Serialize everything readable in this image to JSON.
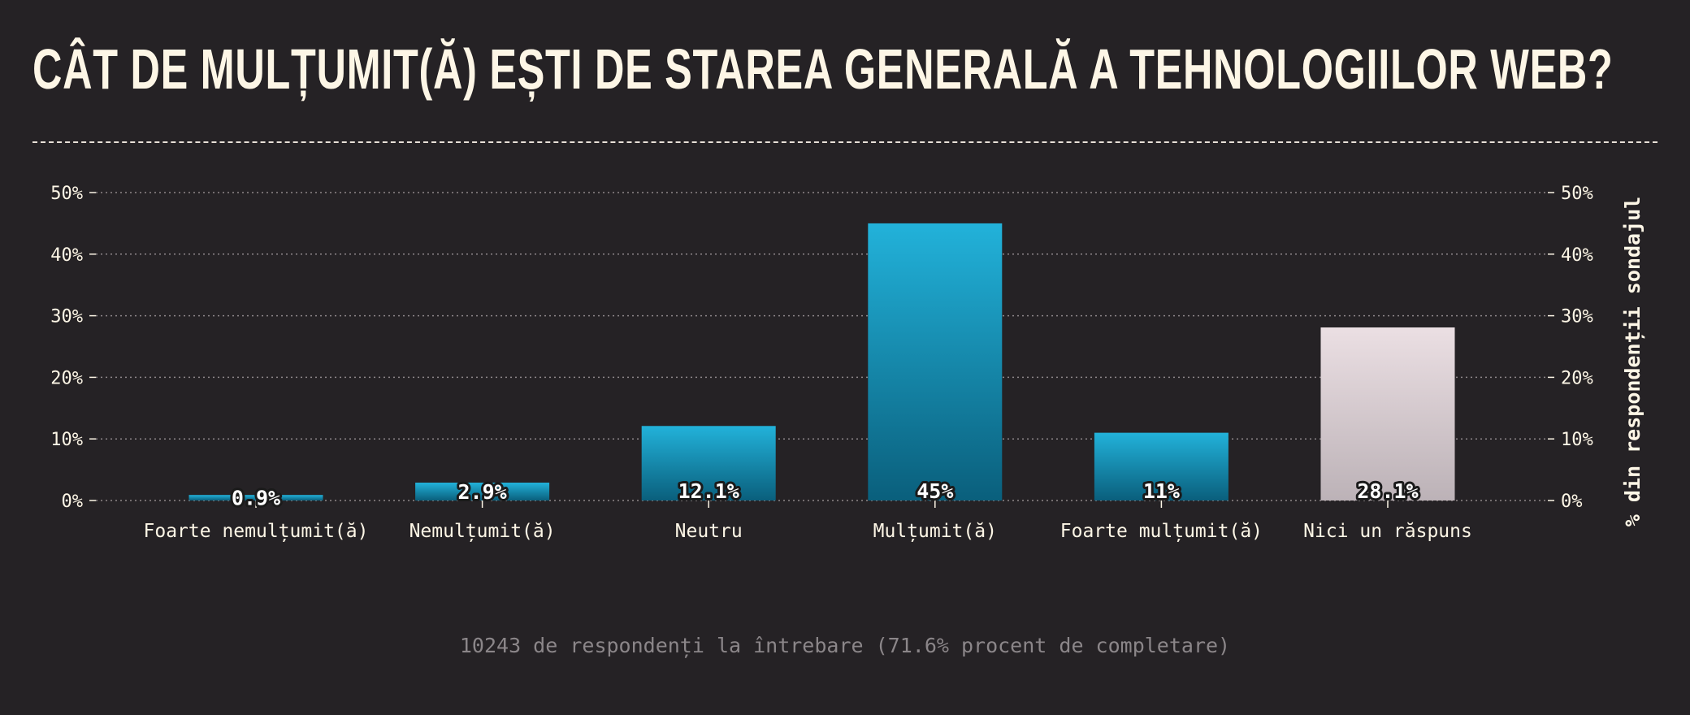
{
  "title": "CÂT DE MULȚUMIT(Ă) EȘTI DE STAREA GENERALĂ A TEHNOLOGIILOR WEB?",
  "footer": "10243 de respondenți la întrebare (71.6% procent de completare)",
  "colors": {
    "background": "#252225",
    "bar_top": "#22b2da",
    "bar_bottom": "#0a5f7c",
    "no_answer_top": "#ebdfe3",
    "no_answer_bottom": "#bcb2b7",
    "text": "#fdf6e6"
  },
  "chart_data": {
    "type": "bar",
    "categories": [
      "Foarte nemulțumit(ă)",
      "Nemulțumit(ă)",
      "Neutru",
      "Mulțumit(ă)",
      "Foarte mulțumit(ă)",
      "Nici un răspuns"
    ],
    "values": [
      0.9,
      2.9,
      12.1,
      45,
      11,
      28.1
    ],
    "value_labels": [
      "0.9%",
      "2.9%",
      "12.1%",
      "45%",
      "11%",
      "28.1%"
    ],
    "highlight": [
      false,
      false,
      false,
      false,
      false,
      true
    ],
    "ylim": [
      0,
      50
    ],
    "yticks": [
      0,
      10,
      20,
      30,
      40,
      50
    ],
    "ytick_labels": [
      "0%",
      "10%",
      "20%",
      "30%",
      "40%",
      "50%"
    ],
    "ylabel_right": "% din respondenții sondajul",
    "grid": true
  }
}
